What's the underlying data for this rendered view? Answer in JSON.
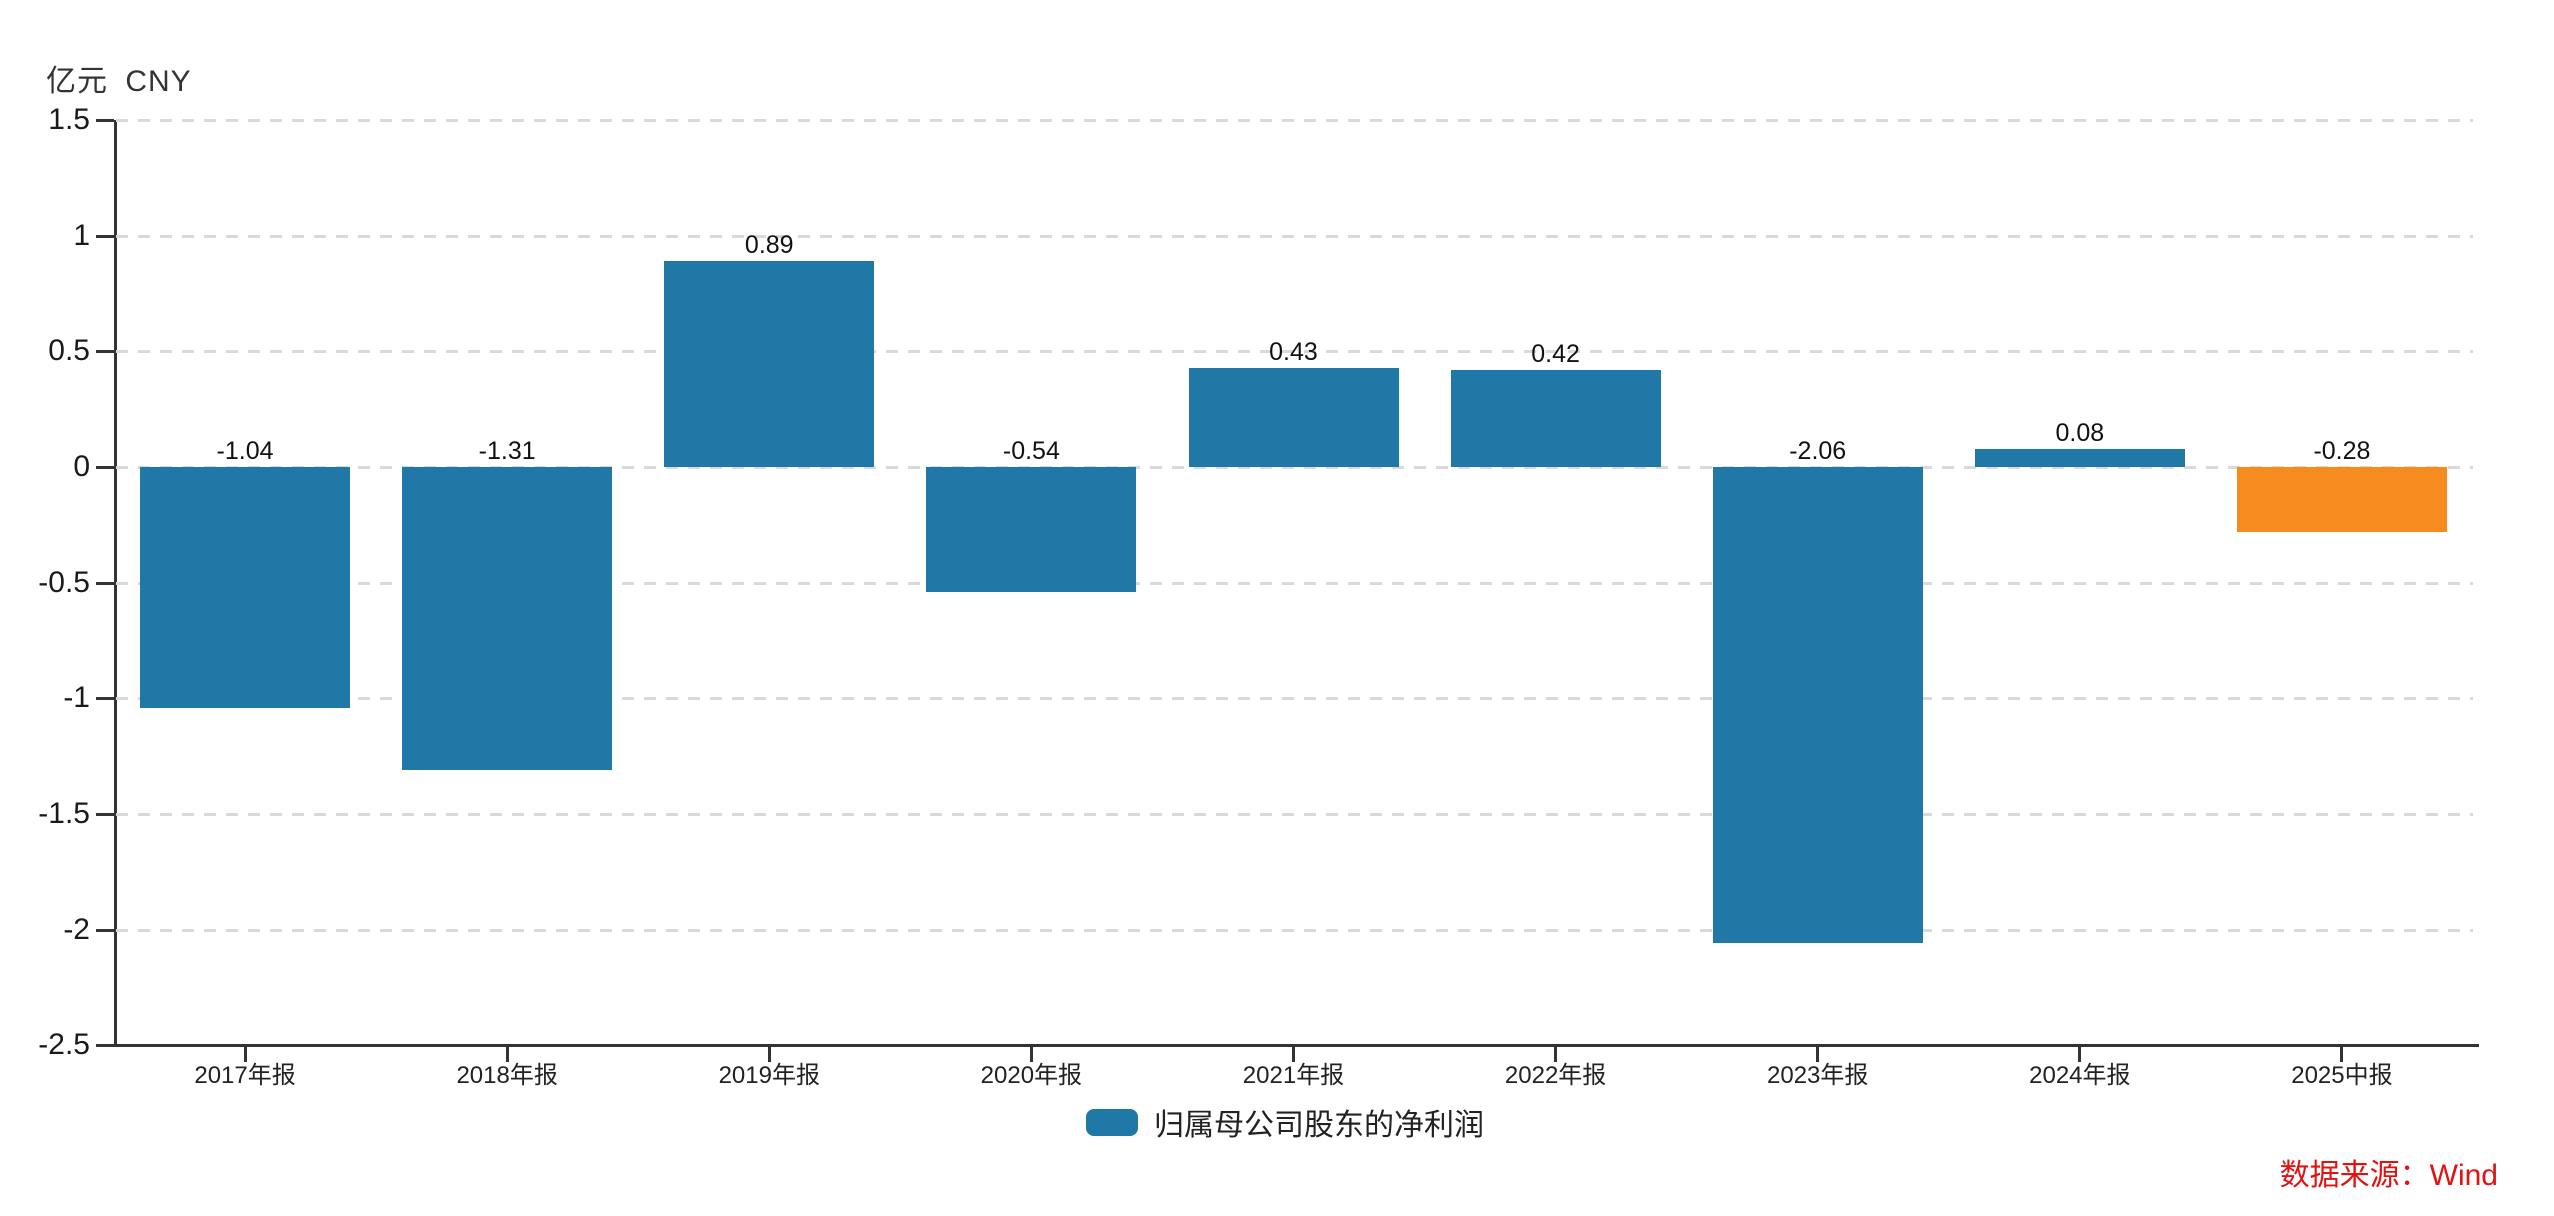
{
  "unit_label": "亿元 CNY",
  "legend": {
    "label": "归属母公司股东的净利润",
    "swatch_color": "#1F78A5"
  },
  "source": {
    "text": "数据来源：Wind",
    "color": "#E31212"
  },
  "chart_data": {
    "type": "bar",
    "title": "",
    "xlabel": "",
    "ylabel": "亿元 CNY",
    "categories": [
      "2017年报",
      "2018年报",
      "2019年报",
      "2020年报",
      "2021年报",
      "2022年报",
      "2023年报",
      "2024年报",
      "2025中报"
    ],
    "series": [
      {
        "name": "归属母公司股东的净利润",
        "values": [
          -1.04,
          -1.31,
          0.89,
          -0.54,
          0.43,
          0.42,
          -2.06,
          0.08,
          -0.28
        ]
      }
    ],
    "value_labels": [
      "-1.04",
      "-1.31",
      "0.89",
      "-0.54",
      "0.43",
      "0.42",
      "-2.06",
      "0.08",
      "-0.28"
    ],
    "bar_colors": [
      "#1F78A5",
      "#1F78A5",
      "#1F78A5",
      "#1F78A5",
      "#1F78A5",
      "#1F78A5",
      "#1F78A5",
      "#1F78A5",
      "#F68B1F"
    ],
    "y_ticks": [
      1.5,
      1,
      0.5,
      0,
      -0.5,
      -1,
      -1.5,
      -2,
      -2.5
    ],
    "y_tick_labels": [
      "1.5",
      "1",
      "0.5",
      "0",
      "-0.5",
      "-1",
      "-1.5",
      "-2",
      "-2.5"
    ],
    "ylim": [
      -2.5,
      1.5
    ],
    "grid": "horizontal-dashed",
    "legend_position": "bottom-center",
    "axis_color": "#333333",
    "grid_color": "#D9D9D9",
    "text_color": "#1A1A1A"
  }
}
